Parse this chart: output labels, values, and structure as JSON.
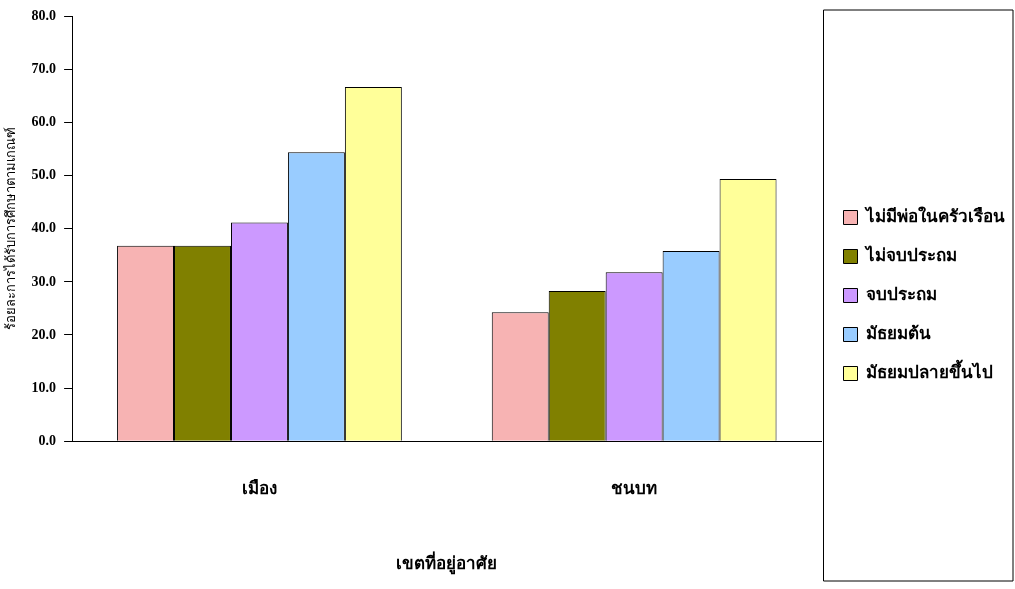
{
  "chart_data": {
    "type": "bar",
    "xlabel": "เขตที่อยู่อาศัย",
    "ylabel": "ร้อยละการได้รับการศึกษาตามเกณฑ์",
    "categories": [
      "เมือง",
      "ชนบท"
    ],
    "series": [
      {
        "name": "ไม่มีพ่อในครัวเรือน",
        "color": "#f7b3b3",
        "values": [
          36.8,
          24.3
        ]
      },
      {
        "name": "ไม่จบประถม",
        "color": "#808000",
        "values": [
          36.8,
          28.3
        ]
      },
      {
        "name": "จบประถม",
        "color": "#cc99ff",
        "values": [
          41.2,
          31.8
        ]
      },
      {
        "name": "มัธยมต้น",
        "color": "#99ccff",
        "values": [
          54.4,
          35.8
        ]
      },
      {
        "name": "มัธยมปลายขึ้นไป",
        "color": "#ffff99",
        "values": [
          66.7,
          49.4
        ]
      }
    ],
    "ylim": [
      0,
      80
    ],
    "yticks": [
      {
        "value": 0,
        "label": "0.0"
      },
      {
        "value": 10,
        "label": "10.0"
      },
      {
        "value": 20,
        "label": "20.0"
      },
      {
        "value": 30,
        "label": "30.0"
      },
      {
        "value": 40,
        "label": "40.0"
      },
      {
        "value": 50,
        "label": "50.0"
      },
      {
        "value": 60,
        "label": "60.0"
      },
      {
        "value": 70,
        "label": "70.0"
      },
      {
        "value": 80,
        "label": "80.0"
      }
    ],
    "grid": false,
    "legend": "right"
  }
}
